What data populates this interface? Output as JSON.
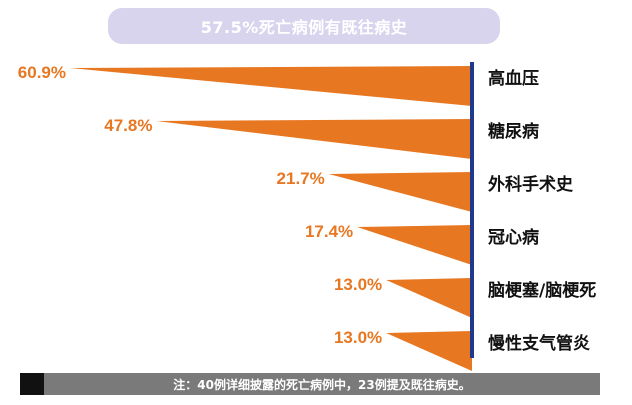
{
  "title": "57.5%死亡病例有既往病史",
  "footnote": "注：40例详细披露的死亡病例中，23例提及既往病史。",
  "colors": {
    "accent": "#e87722",
    "axis": "#1f3a8c",
    "label": "#e87722",
    "title_bg": "#d9d4ee"
  },
  "chart_data": {
    "type": "bar",
    "orientation": "horizontal-wedge",
    "categories": [
      "高血压",
      "糖尿病",
      "外科手术史",
      "冠心病",
      "脑梗塞/脑梗死",
      "慢性支气管炎"
    ],
    "values": [
      60.9,
      47.8,
      21.7,
      17.4,
      13.0,
      13.0
    ],
    "value_labels": [
      "60.9%",
      "47.8%",
      "21.7%",
      "17.4%",
      "13.0%",
      "13.0%"
    ],
    "unit": "%",
    "title": "57.5%死亡病例有既往病史",
    "xlim": [
      0,
      70
    ],
    "grid": false,
    "legend": "none"
  }
}
